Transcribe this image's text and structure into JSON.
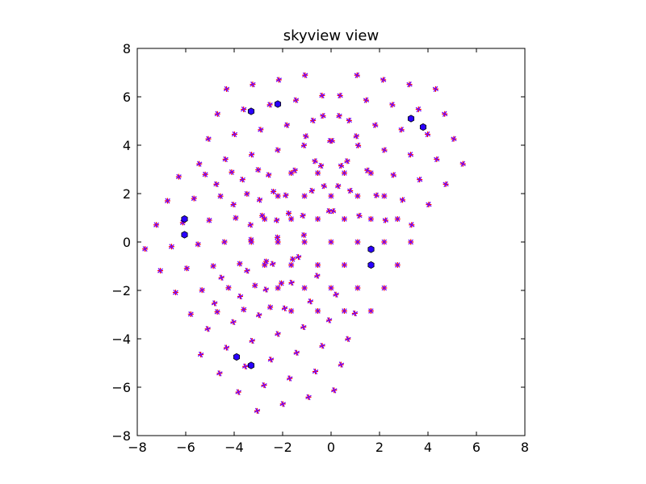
{
  "chart_data": {
    "type": "scatter",
    "title": "skyview view",
    "xlabel": "",
    "ylabel": "",
    "xlim": [
      -8,
      8
    ],
    "ylim": [
      -8,
      8
    ],
    "x_ticks": [
      -8,
      -6,
      -4,
      -2,
      0,
      2,
      4,
      6,
      8
    ],
    "y_ticks": [
      -8,
      -6,
      -4,
      -2,
      0,
      2,
      4,
      6,
      8
    ],
    "grid": false,
    "legend": "none",
    "colors": {
      "hexagon_marker": "#2a00ff",
      "plus_marker": "#ff0000",
      "x_marker": "#7000ff"
    },
    "clusters": [
      {
        "center": [
          -2.2,
          3.8
        ],
        "radius": 1.9,
        "rotation_deg": 10,
        "hexagon_points": [
          [
            -3.3,
            5.4
          ],
          [
            -2.2,
            5.7
          ]
        ]
      },
      {
        "center": [
          2.2,
          3.8
        ],
        "radius": 1.9,
        "rotation_deg": -10,
        "hexagon_points": [
          [
            3.3,
            5.1
          ],
          [
            3.8,
            4.75
          ]
        ]
      },
      {
        "center": [
          -4.4,
          0.0
        ],
        "radius": 1.9,
        "rotation_deg": 5,
        "hexagon_points": [
          [
            -6.05,
            0.95
          ],
          [
            -6.05,
            0.3
          ]
        ]
      },
      {
        "center": [
          0.0,
          0.0
        ],
        "radius": 1.9,
        "rotation_deg": 0,
        "hexagon_points": [
          [
            1.65,
            -0.3
          ],
          [
            1.65,
            -0.95
          ]
        ]
      },
      {
        "center": [
          -2.2,
          -3.8
        ],
        "radius": 1.9,
        "rotation_deg": 15,
        "hexagon_points": [
          [
            -3.9,
            -4.75
          ],
          [
            -3.3,
            -5.1
          ]
        ]
      }
    ]
  }
}
